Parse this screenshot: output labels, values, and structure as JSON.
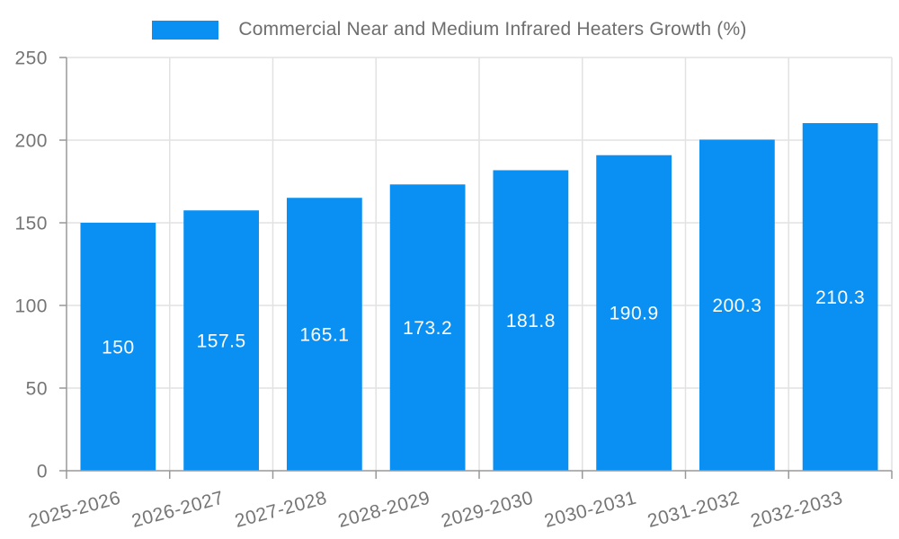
{
  "chart_data": {
    "type": "bar",
    "title": "Commercial Near and Medium Infrared Heaters Growth (%)",
    "categories": [
      "2025-2026",
      "2026-2027",
      "2027-2028",
      "2028-2029",
      "2029-2030",
      "2030-2031",
      "2031-2032",
      "2032-2033"
    ],
    "values": [
      150,
      157.5,
      165.1,
      173.2,
      181.8,
      190.9,
      200.3,
      210.3
    ],
    "xlabel": "",
    "ylabel": "",
    "ylim": [
      0,
      250
    ],
    "ytick_step": 50,
    "ytick_labels": [
      "0",
      "50",
      "100",
      "150",
      "200",
      "250"
    ],
    "grid": "on",
    "legend_position": "top-center",
    "bar_label_position": "inside-center",
    "xtick_rotation_deg": -15,
    "colors": {
      "bar": "#0a90f2",
      "grid": "#e2e2e2",
      "axis": "#999999",
      "tick_text": "#757575",
      "legend_text": "#6e6e6e",
      "bar_label_text": "#ffffff",
      "background": "#ffffff"
    }
  }
}
